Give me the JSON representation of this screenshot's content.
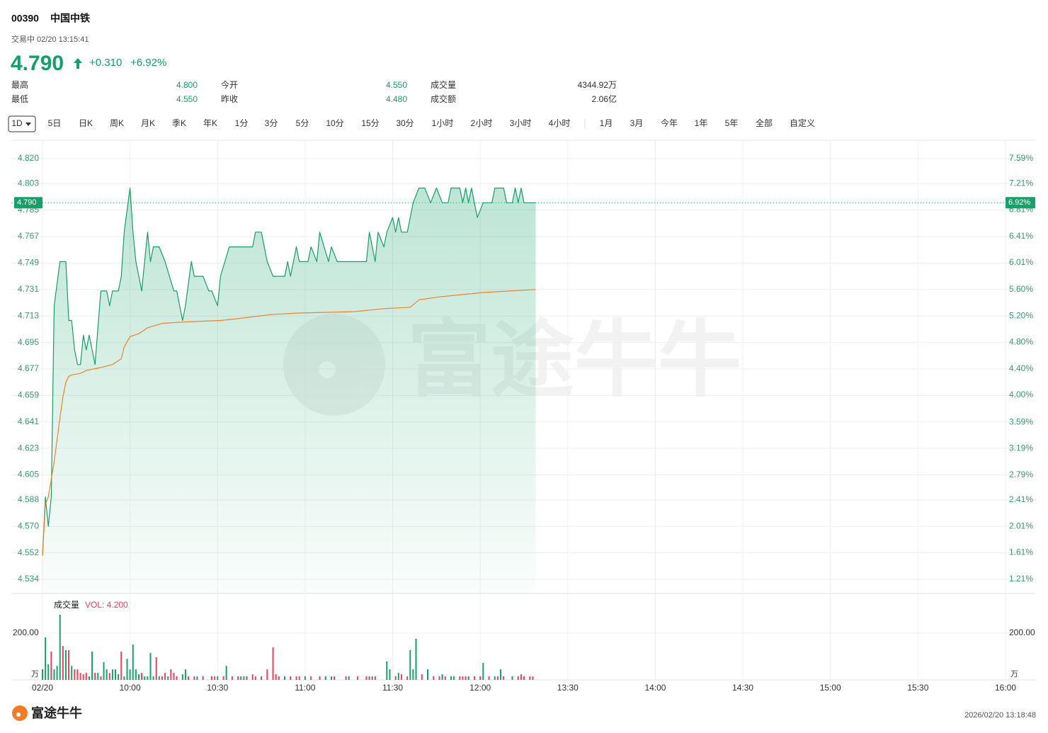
{
  "quote": {
    "code": "00390",
    "name": "中国中铁",
    "status": "交易中 02/20 13:15:41",
    "price": "4.790",
    "change": "+0.310",
    "change_pct": "+6.92%",
    "stats": [
      [
        "最高",
        "4.800",
        "今开",
        "4.550",
        "成交量",
        "4344.92万"
      ],
      [
        "最低",
        "4.550",
        "昨收",
        "4.480",
        "成交额",
        "2.06亿"
      ]
    ]
  },
  "tabs": {
    "periods": [
      "1D",
      "5日",
      "日K",
      "周K",
      "月K",
      "季K",
      "年K",
      "1分",
      "3分",
      "5分",
      "10分",
      "15分",
      "30分",
      "1小时",
      "2小时",
      "3小时",
      "4小时"
    ],
    "ranges": [
      "1月",
      "3月",
      "今年",
      "1年",
      "5年",
      "全部",
      "自定义"
    ]
  },
  "chart_data": [
    {
      "type": "line",
      "watermark": "富途牛牛",
      "grid": true,
      "xlim": [
        0,
        330
      ],
      "xticks": [
        {
          "value": 0,
          "label": "02/20"
        },
        {
          "value": 30,
          "label": "10:00"
        },
        {
          "value": 60,
          "label": "10:30"
        },
        {
          "value": 90,
          "label": "11:00"
        },
        {
          "value": 120,
          "label": "11:30"
        },
        {
          "value": 150,
          "label": "12:00"
        },
        {
          "value": 180,
          "label": "13:30"
        },
        {
          "value": 210,
          "label": "14:00"
        },
        {
          "value": 240,
          "label": "14:30"
        },
        {
          "value": 270,
          "label": "15:00"
        },
        {
          "value": 300,
          "label": "15:30"
        },
        {
          "value": 330,
          "label": "16:00"
        }
      ],
      "ylim": [
        4.5244,
        4.8325
      ],
      "yticks": [
        {
          "value": 4.82,
          "label": "4.820"
        },
        {
          "value": 4.803,
          "label": "4.803"
        },
        {
          "value": 4.785,
          "label": "4.785"
        },
        {
          "value": 4.767,
          "label": "4.767"
        },
        {
          "value": 4.749,
          "label": "4.749"
        },
        {
          "value": 4.731,
          "label": "4.731"
        },
        {
          "value": 4.713,
          "label": "4.713"
        },
        {
          "value": 4.695,
          "label": "4.695"
        },
        {
          "value": 4.677,
          "label": "4.677"
        },
        {
          "value": 4.659,
          "label": "4.659"
        },
        {
          "value": 4.641,
          "label": "4.641"
        },
        {
          "value": 4.623,
          "label": "4.623"
        },
        {
          "value": 4.605,
          "label": "4.605"
        },
        {
          "value": 4.588,
          "label": "4.588"
        },
        {
          "value": 4.57,
          "label": "4.570"
        },
        {
          "value": 4.552,
          "label": "4.552"
        },
        {
          "value": 4.534,
          "label": "4.534"
        }
      ],
      "y2lim": [
        0.991,
        7.868
      ],
      "y2ticks": [
        {
          "value": 7.59,
          "label": "7.59%"
        },
        {
          "value": 7.21,
          "label": "7.21%"
        },
        {
          "value": 6.81,
          "label": "6.81%"
        },
        {
          "value": 6.41,
          "label": "6.41%"
        },
        {
          "value": 6.01,
          "label": "6.01%"
        },
        {
          "value": 5.6,
          "label": "5.60%"
        },
        {
          "value": 5.2,
          "label": "5.20%"
        },
        {
          "value": 4.8,
          "label": "4.80%"
        },
        {
          "value": 4.4,
          "label": "4.40%"
        },
        {
          "value": 4.0,
          "label": "4.00%"
        },
        {
          "value": 3.59,
          "label": "3.59%"
        },
        {
          "value": 3.19,
          "label": "3.19%"
        },
        {
          "value": 2.79,
          "label": "2.79%"
        },
        {
          "value": 2.41,
          "label": "2.41%"
        },
        {
          "value": 2.01,
          "label": "2.01%"
        },
        {
          "value": 1.61,
          "label": "1.61%"
        },
        {
          "value": 1.21,
          "label": "1.21%"
        }
      ],
      "last": {
        "value": 4.79,
        "label": "4.790",
        "pct": {
          "value": 6.92,
          "label": "6.92%"
        }
      },
      "series": [
        {
          "color": "#16a06a",
          "fill": true,
          "x": [
            0,
            1,
            2,
            3,
            4,
            6,
            8,
            9,
            10,
            11,
            12,
            13,
            14,
            15,
            16,
            17,
            18,
            20,
            22,
            23,
            24,
            26,
            27,
            28,
            30,
            31,
            32,
            34,
            36,
            37,
            38,
            40,
            42,
            45,
            46,
            48,
            49,
            51,
            52,
            55,
            57,
            58,
            60,
            61,
            64,
            72,
            73,
            75,
            77,
            79,
            83,
            84,
            85,
            87,
            88,
            91,
            92,
            94,
            95,
            98,
            99,
            101,
            111,
            112,
            114,
            115,
            117,
            118,
            120,
            121,
            122,
            123,
            125,
            127,
            129,
            131,
            133,
            135,
            137,
            139,
            140,
            143,
            144,
            145,
            146,
            147,
            149,
            151,
            154,
            155,
            158,
            159,
            161,
            162,
            163,
            164,
            165,
            169
          ],
          "values": [
            4.55,
            4.59,
            4.57,
            4.59,
            4.72,
            4.75,
            4.75,
            4.71,
            4.71,
            4.69,
            4.68,
            4.68,
            4.7,
            4.69,
            4.7,
            4.69,
            4.68,
            4.73,
            4.73,
            4.72,
            4.73,
            4.73,
            4.74,
            4.77,
            4.8,
            4.77,
            4.75,
            4.73,
            4.77,
            4.75,
            4.76,
            4.76,
            4.75,
            4.73,
            4.73,
            4.71,
            4.72,
            4.75,
            4.74,
            4.74,
            4.73,
            4.73,
            4.72,
            4.74,
            4.76,
            4.76,
            4.77,
            4.77,
            4.75,
            4.74,
            4.74,
            4.75,
            4.74,
            4.76,
            4.75,
            4.75,
            4.76,
            4.75,
            4.77,
            4.75,
            4.76,
            4.75,
            4.75,
            4.77,
            4.75,
            4.77,
            4.76,
            4.77,
            4.78,
            4.77,
            4.78,
            4.77,
            4.77,
            4.79,
            4.8,
            4.8,
            4.79,
            4.8,
            4.79,
            4.79,
            4.8,
            4.8,
            4.79,
            4.8,
            4.79,
            4.8,
            4.78,
            4.79,
            4.79,
            4.8,
            4.8,
            4.79,
            4.79,
            4.8,
            4.79,
            4.8,
            4.79,
            4.79
          ]
        },
        {
          "color": "#f0822a",
          "fill": false,
          "x": [
            0,
            1,
            2,
            4,
            5,
            6,
            7,
            8,
            9,
            10,
            13,
            15,
            20,
            24,
            27,
            28,
            30,
            33,
            36,
            41,
            49,
            61,
            66,
            78,
            87,
            107,
            117,
            126,
            129,
            136,
            151,
            169
          ],
          "values": [
            4.55,
            4.585,
            4.59,
            4.614,
            4.629,
            4.644,
            4.658,
            4.668,
            4.672,
            4.673,
            4.674,
            4.676,
            4.678,
            4.68,
            4.684,
            4.692,
            4.699,
            4.701,
            4.705,
            4.708,
            4.709,
            4.71,
            4.711,
            4.714,
            4.715,
            4.716,
            4.718,
            4.719,
            4.724,
            4.726,
            4.729,
            4.731
          ]
        }
      ]
    },
    {
      "type": "bar",
      "title": "成交量",
      "subtitle": "VOL: 4.200",
      "unit": "万",
      "xlim": [
        0,
        330
      ],
      "ylim": [
        0,
        363.6
      ],
      "yticks": [
        {
          "value": 200,
          "label": "200.00"
        }
      ],
      "series": [
        {
          "color": "#16a06a",
          "x": [
            0,
            1,
            2,
            4,
            5,
            6,
            8,
            10,
            16,
            17,
            19,
            21,
            22,
            24,
            25,
            26,
            28,
            29,
            30,
            31,
            32,
            33,
            35,
            36,
            37,
            38,
            40,
            43,
            48,
            49,
            53,
            60,
            63,
            68,
            70,
            83,
            90,
            97,
            99,
            105,
            113,
            118,
            119,
            122,
            126,
            127,
            128,
            132,
            137,
            140,
            141,
            146,
            151,
            155,
            157,
            161
          ],
          "values": [
            45,
            182,
            67,
            45,
            60,
            279,
            127,
            60,
            15,
            121,
            30,
            76,
            45,
            45,
            45,
            24,
            15,
            90,
            45,
            151,
            45,
            24,
            15,
            15,
            115,
            15,
            15,
            15,
            24,
            45,
            15,
            15,
            60,
            15,
            15,
            15,
            15,
            15,
            15,
            15,
            15,
            79,
            45,
            30,
            127,
            45,
            176,
            45,
            24,
            15,
            15,
            15,
            73,
            15,
            45,
            15
          ]
        },
        {
          "color": "#e8415d",
          "x": [
            3,
            7,
            9,
            11,
            12,
            13,
            14,
            15,
            18,
            20,
            23,
            27,
            34,
            39,
            41,
            42,
            44,
            45,
            46,
            50,
            52,
            55,
            58,
            59,
            62,
            65,
            67,
            69,
            72,
            73,
            75,
            77,
            79,
            80,
            81,
            85,
            87,
            88,
            92,
            95,
            100,
            104,
            108,
            111,
            112,
            114,
            121,
            123,
            125,
            130,
            134,
            136,
            138,
            143,
            144,
            145,
            148,
            150,
            153,
            156,
            158,
            163,
            164,
            165,
            167,
            168
          ],
          "values": [
            121,
            145,
            127,
            45,
            45,
            30,
            24,
            30,
            30,
            15,
            30,
            121,
            30,
            97,
            15,
            30,
            45,
            30,
            15,
            15,
            15,
            15,
            15,
            15,
            15,
            15,
            15,
            15,
            24,
            15,
            15,
            45,
            139,
            24,
            15,
            15,
            15,
            15,
            15,
            15,
            15,
            15,
            15,
            15,
            15,
            15,
            15,
            24,
            15,
            24,
            15,
            15,
            15,
            15,
            15,
            15,
            15,
            15,
            15,
            15,
            15,
            15,
            24,
            15,
            15,
            15
          ]
        }
      ]
    }
  ],
  "footer": {
    "brand": "富途牛牛",
    "timestamp": "2026/02/20 13:18:48"
  }
}
